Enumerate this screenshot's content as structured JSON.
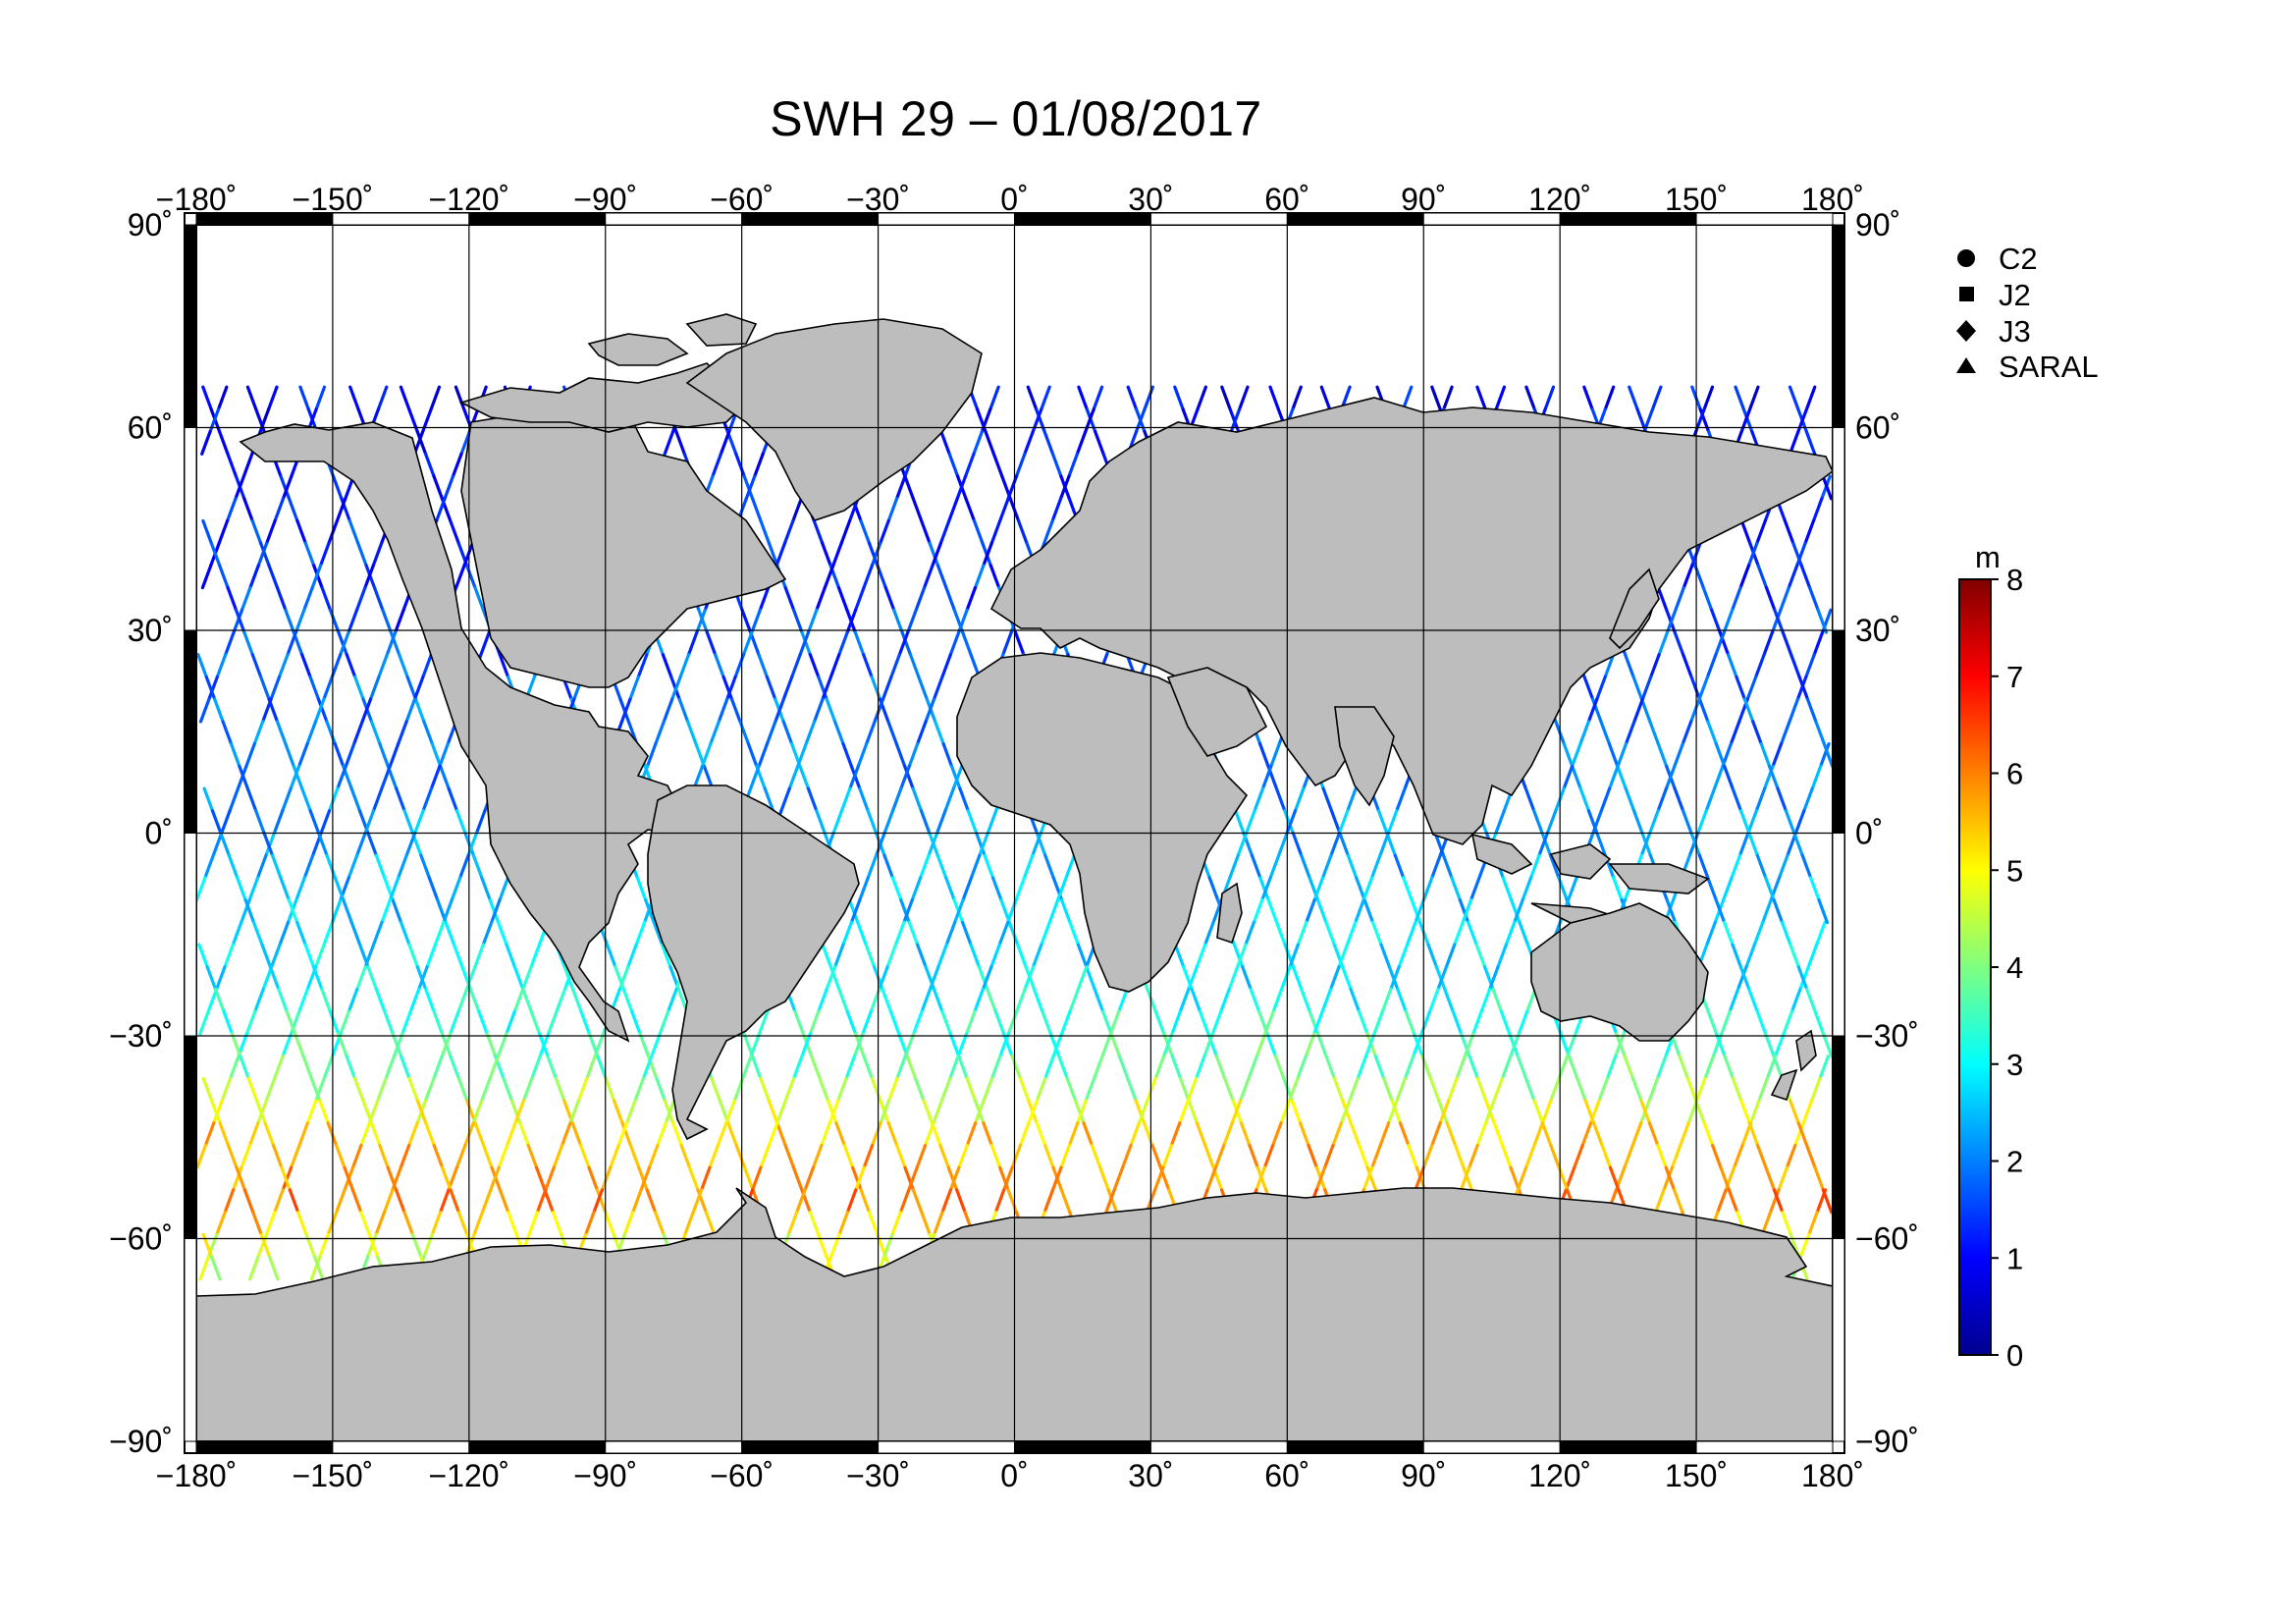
{
  "title": "SWH 29 – 01/08/2017",
  "map": {
    "projection": "equirectangular",
    "lon_range": [
      -180,
      180
    ],
    "lat_range": [
      -90,
      90
    ],
    "lon_ticks": [
      "−180˚",
      "−150˚",
      "−120˚",
      "−90˚",
      "−60˚",
      "−30˚",
      "0˚",
      "30˚",
      "60˚",
      "90˚",
      "120˚",
      "150˚",
      "180˚"
    ],
    "lat_ticks": [
      "90˚",
      "60˚",
      "30˚",
      "0˚",
      "−30˚",
      "−60˚",
      "−90˚"
    ],
    "land_color": "#bdbdbd",
    "ocean_color": "#ffffff",
    "grid": true
  },
  "legend": {
    "items": [
      {
        "symbol": "circle",
        "label": "C2"
      },
      {
        "symbol": "square",
        "label": "J2"
      },
      {
        "symbol": "diamond",
        "label": "J3"
      },
      {
        "symbol": "triangle",
        "label": "SARAL"
      }
    ]
  },
  "colorbar": {
    "unit": "m",
    "min": 0,
    "max": 8,
    "tick_labels": [
      "0",
      "1",
      "2",
      "3",
      "4",
      "5",
      "6",
      "7",
      "8"
    ],
    "colors": [
      "#00008f",
      "#0000ff",
      "#0080ff",
      "#00ffff",
      "#80ff80",
      "#ffff00",
      "#ff8000",
      "#ff0000",
      "#800000"
    ]
  },
  "chart_data": {
    "type": "scatter",
    "title": "SWH 29 – 01/08/2017",
    "xlabel": "",
    "ylabel": "",
    "xlim": [
      -180,
      180
    ],
    "ylim": [
      -90,
      90
    ],
    "color_scale_m": [
      0,
      8
    ],
    "series": [
      {
        "name": "C2"
      },
      {
        "name": "J2"
      },
      {
        "name": "J3"
      },
      {
        "name": "SARAL"
      }
    ],
    "swh_by_latitude_band": [
      {
        "lat": 65,
        "swh_m": 1.0
      },
      {
        "lat": 45,
        "swh_m": 1.3
      },
      {
        "lat": 20,
        "swh_m": 1.8
      },
      {
        "lat": 0,
        "swh_m": 2.2
      },
      {
        "lat": -20,
        "swh_m": 2.8
      },
      {
        "lat": -35,
        "swh_m": 3.8
      },
      {
        "lat": -45,
        "swh_m": 5.5
      },
      {
        "lat": -55,
        "swh_m": 6.0
      },
      {
        "lat": -62,
        "swh_m": 4.5
      }
    ]
  }
}
